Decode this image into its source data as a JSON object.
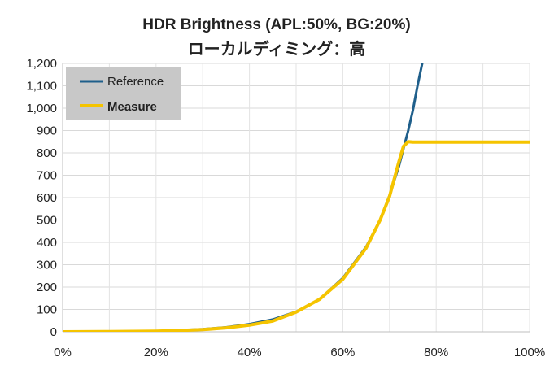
{
  "chart_data": {
    "type": "line",
    "title": "HDR Brightness (APL:50%, BG:20%)",
    "subtitle": "ローカルディミング：高",
    "xlabel": "",
    "ylabel": "",
    "xlim": [
      0,
      100
    ],
    "ylim": [
      0,
      1200
    ],
    "x_ticks": [
      "0%",
      "20%",
      "40%",
      "60%",
      "80%",
      "100%"
    ],
    "y_ticks": [
      "0",
      "100",
      "200",
      "300",
      "400",
      "500",
      "600",
      "700",
      "800",
      "900",
      "1,000",
      "1,100",
      "1,200"
    ],
    "grid": true,
    "legend_position": "top-left",
    "series": [
      {
        "name": "Reference",
        "color": "#1f5f8b",
        "x": [
          0,
          10,
          20,
          25,
          30,
          35,
          40,
          45,
          50,
          55,
          60,
          65,
          68,
          70,
          72,
          74,
          75,
          76,
          77
        ],
        "y": [
          0,
          1,
          3,
          7,
          12,
          20,
          34,
          55,
          90,
          145,
          240,
          380,
          500,
          610,
          740,
          900,
          990,
          1100,
          1200
        ]
      },
      {
        "name": "Measure",
        "color": "#f5c400",
        "x": [
          0,
          10,
          20,
          25,
          30,
          35,
          40,
          45,
          50,
          55,
          60,
          65,
          68,
          70,
          72,
          73,
          74,
          75,
          80,
          90,
          100
        ],
        "y": [
          0,
          1,
          3,
          6,
          10,
          18,
          30,
          48,
          88,
          145,
          235,
          375,
          500,
          605,
          760,
          830,
          850,
          848,
          848,
          848,
          848
        ]
      }
    ]
  }
}
